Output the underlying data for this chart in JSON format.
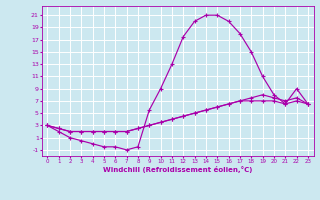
{
  "line1_x": [
    0,
    1,
    2,
    3,
    4,
    5,
    6,
    7,
    8,
    9,
    10,
    11,
    12,
    13,
    14,
    15,
    16,
    17,
    18,
    19,
    20,
    21,
    22,
    23
  ],
  "line1_y": [
    3,
    2,
    1,
    0.5,
    0,
    -0.5,
    -0.5,
    -1,
    -0.5,
    5.5,
    9,
    13,
    17.5,
    20,
    21,
    21,
    20,
    18,
    15,
    11,
    8,
    6.5,
    9,
    6.5
  ],
  "line2_x": [
    0,
    1,
    2,
    3,
    4,
    5,
    6,
    7,
    8,
    9,
    10,
    11,
    12,
    13,
    14,
    15,
    16,
    17,
    18,
    19,
    20,
    21,
    22,
    23
  ],
  "line2_y": [
    3,
    2.5,
    2,
    2,
    2,
    2,
    2,
    2,
    2.5,
    3,
    3.5,
    4,
    4.5,
    5,
    5.5,
    6,
    6.5,
    7,
    7,
    7,
    7,
    6.5,
    7,
    6.5
  ],
  "line3_x": [
    0,
    1,
    2,
    3,
    4,
    5,
    6,
    7,
    8,
    9,
    10,
    11,
    12,
    13,
    14,
    15,
    16,
    17,
    18,
    19,
    20,
    21,
    22,
    23
  ],
  "line3_y": [
    3,
    2.5,
    2,
    2,
    2,
    2,
    2,
    2,
    2.5,
    3,
    3.5,
    4,
    4.5,
    5,
    5.5,
    6,
    6.5,
    7,
    7.5,
    8,
    7.5,
    7,
    7.5,
    6.5
  ],
  "line_color": "#aa00aa",
  "bg_color": "#cce8f0",
  "grid_color": "#ffffff",
  "xlabel": "Windchill (Refroidissement éolien,°C)",
  "xlabel_color": "#aa00aa",
  "tick_color": "#aa00aa",
  "xlim": [
    -0.5,
    23.5
  ],
  "ylim": [
    -2,
    22.5
  ],
  "yticks": [
    -1,
    1,
    3,
    5,
    7,
    9,
    11,
    13,
    15,
    17,
    19,
    21
  ],
  "xticks": [
    0,
    1,
    2,
    3,
    4,
    5,
    6,
    7,
    8,
    9,
    10,
    11,
    12,
    13,
    14,
    15,
    16,
    17,
    18,
    19,
    20,
    21,
    22,
    23
  ]
}
